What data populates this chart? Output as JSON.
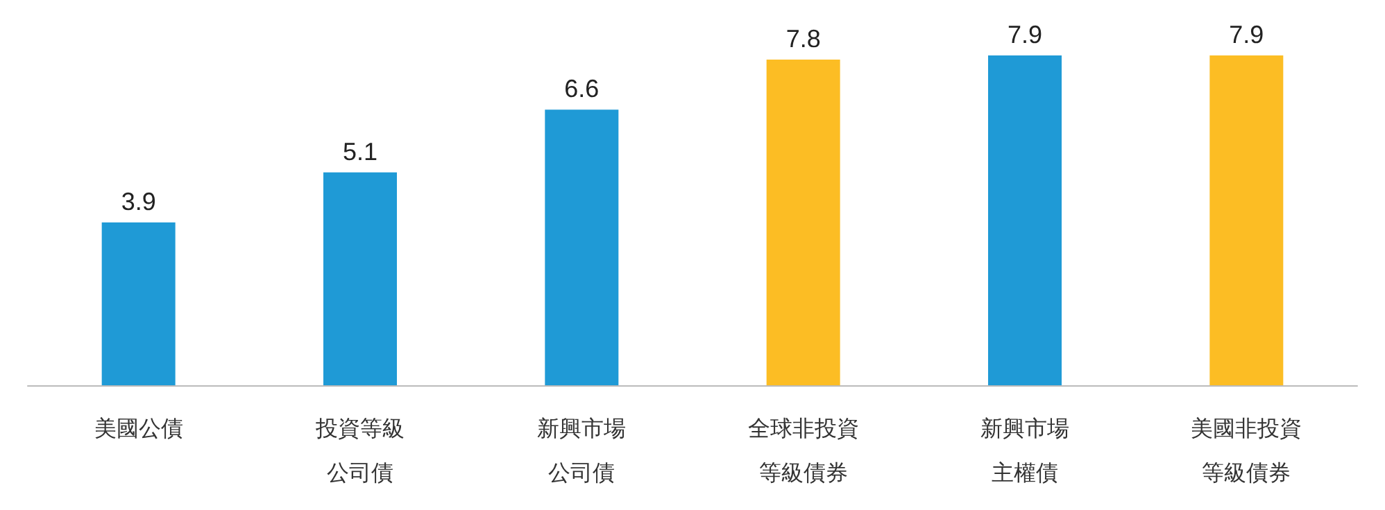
{
  "chart_data": {
    "type": "bar",
    "categories": [
      "美國公債",
      "投資等級公司債",
      "新興市場公司債",
      "全球非投資等級債券",
      "新興市場主權債",
      "美國非投資等級債券"
    ],
    "values": [
      3.9,
      5.1,
      6.6,
      7.8,
      7.9,
      7.9
    ],
    "colors": [
      "#1f9ad6",
      "#1f9ad6",
      "#1f9ad6",
      "#fcbd24",
      "#1f9ad6",
      "#fcbd24"
    ],
    "data_labels": true,
    "tick_labels": "x"
  }
}
